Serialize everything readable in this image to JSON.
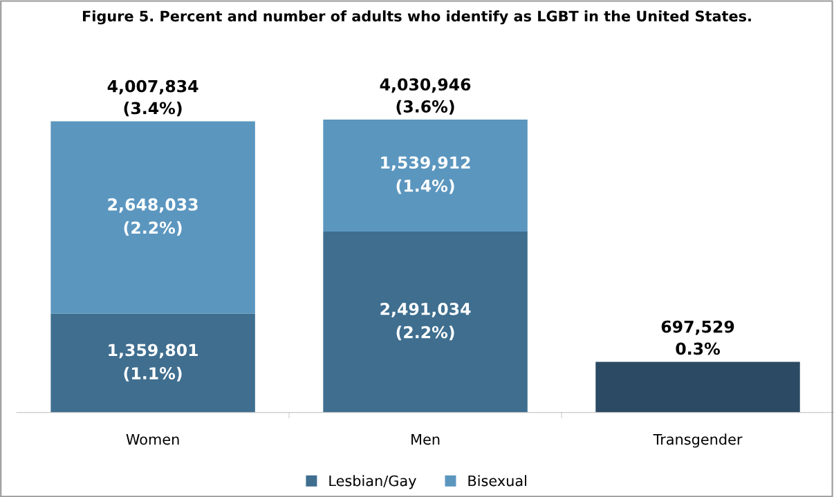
{
  "chart_data": {
    "type": "bar",
    "stacked": true,
    "title": "Figure 5. Percent and number of adults who identify as LGBT in the United States.",
    "categories": [
      "Women",
      "Men",
      "Transgender"
    ],
    "series": [
      {
        "name": "Lesbian/Gay",
        "color": "#3f6e8f",
        "values": [
          1359801,
          2491034,
          null
        ],
        "value_labels": [
          "1,359,801\n(1.1%)",
          "2,491,034\n(2.2%)",
          null
        ]
      },
      {
        "name": "Bisexual",
        "color": "#5b96bf",
        "values": [
          2648033,
          1539912,
          null
        ],
        "value_labels": [
          "2,648,033\n(2.2%)",
          "1,539,912\n(1.4%)",
          null
        ]
      },
      {
        "color": "#2c4a63",
        "values": [
          null,
          null,
          697529
        ]
      }
    ],
    "totals": [
      "4,007,834\n(3.4%)",
      "4,030,946\n(3.6%)",
      "697,529\n0.3%"
    ],
    "legend": "bottom",
    "grid": false
  }
}
